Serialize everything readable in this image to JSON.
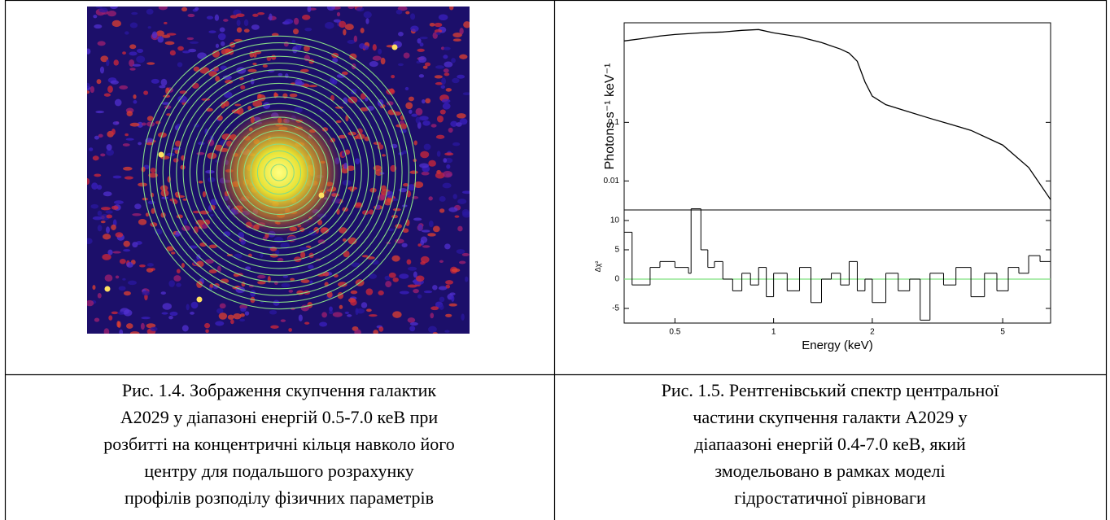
{
  "captions": [
    [
      "Рис. 1.4. Зображення скупчення галактик",
      "А2029 у діапазоні енергій  0.5-7.0 кеВ при",
      "розбитті на концентричні кільця  навколо його",
      "центру для подальшого розрахунку",
      "профілів розподілу фізичних параметрів"
    ],
    [
      "Рис. 1.5. Рентгенівський спектр центральної",
      "частини скупчення галакти А2029  у",
      "діапаазоні енергій 0.4-7.0 кеВ, який",
      "змодельовано в рамках моделі",
      "гідростатичної рівноваги"
    ]
  ],
  "chart_data": [
    {
      "type": "line",
      "ylabel": "Photons s⁻¹ keV⁻¹",
      "xscale": "log",
      "yscale": "log",
      "xlim": [
        0.35,
        7
      ],
      "ylim": [
        0.0032,
        5
      ],
      "yticks": [
        0.1,
        0.01
      ],
      "x": [
        0.35,
        0.4,
        0.45,
        0.5,
        0.6,
        0.7,
        0.8,
        0.9,
        1.0,
        1.2,
        1.4,
        1.6,
        1.7,
        1.8,
        1.9,
        2.0,
        2.2,
        2.5,
        3,
        3.5,
        4,
        5,
        6,
        7
      ],
      "series": [
        {
          "color": "#000000",
          "values": [
            2.45,
            2.7,
            2.97,
            3.16,
            3.37,
            3.48,
            3.71,
            3.83,
            3.37,
            2.87,
            2.3,
            1.78,
            1.52,
            1.1,
            0.49,
            0.28,
            0.2,
            0.16,
            0.117,
            0.091,
            0.073,
            0.041,
            0.017,
            0.0048
          ]
        }
      ]
    },
    {
      "type": "step",
      "ylabel": "Δχ²",
      "xlabel": "Energy (keV)",
      "xscale": "log",
      "xlim": [
        0.35,
        7
      ],
      "ylim": [
        -7.5,
        11.8
      ],
      "xticks": [
        0.5,
        1,
        2,
        5
      ],
      "yticks": [
        10,
        5,
        0,
        -5
      ],
      "hline": {
        "value": 0,
        "color": "#7ee07e"
      },
      "x": [
        0.35,
        0.37,
        0.42,
        0.45,
        0.5,
        0.55,
        0.56,
        0.6,
        0.63,
        0.66,
        0.7,
        0.75,
        0.8,
        0.85,
        0.9,
        0.95,
        1.0,
        1.1,
        1.2,
        1.3,
        1.4,
        1.5,
        1.6,
        1.7,
        1.8,
        1.9,
        2.0,
        2.2,
        2.4,
        2.6,
        2.8,
        3.0,
        3.3,
        3.6,
        4.0,
        4.4,
        4.8,
        5.2,
        5.6,
        6.0,
        6.5
      ],
      "series": [
        {
          "color": "#000000",
          "values": [
            8,
            -1,
            2,
            3,
            2,
            1,
            12,
            5,
            2,
            3,
            0,
            -2,
            1,
            -1,
            2,
            -3,
            1,
            -2,
            2,
            -4,
            0,
            1,
            -1,
            3,
            -2,
            0,
            -4,
            1,
            -2,
            0,
            -7,
            1,
            -1,
            2,
            -3,
            1,
            -2,
            2,
            1,
            4,
            3
          ]
        }
      ]
    }
  ]
}
